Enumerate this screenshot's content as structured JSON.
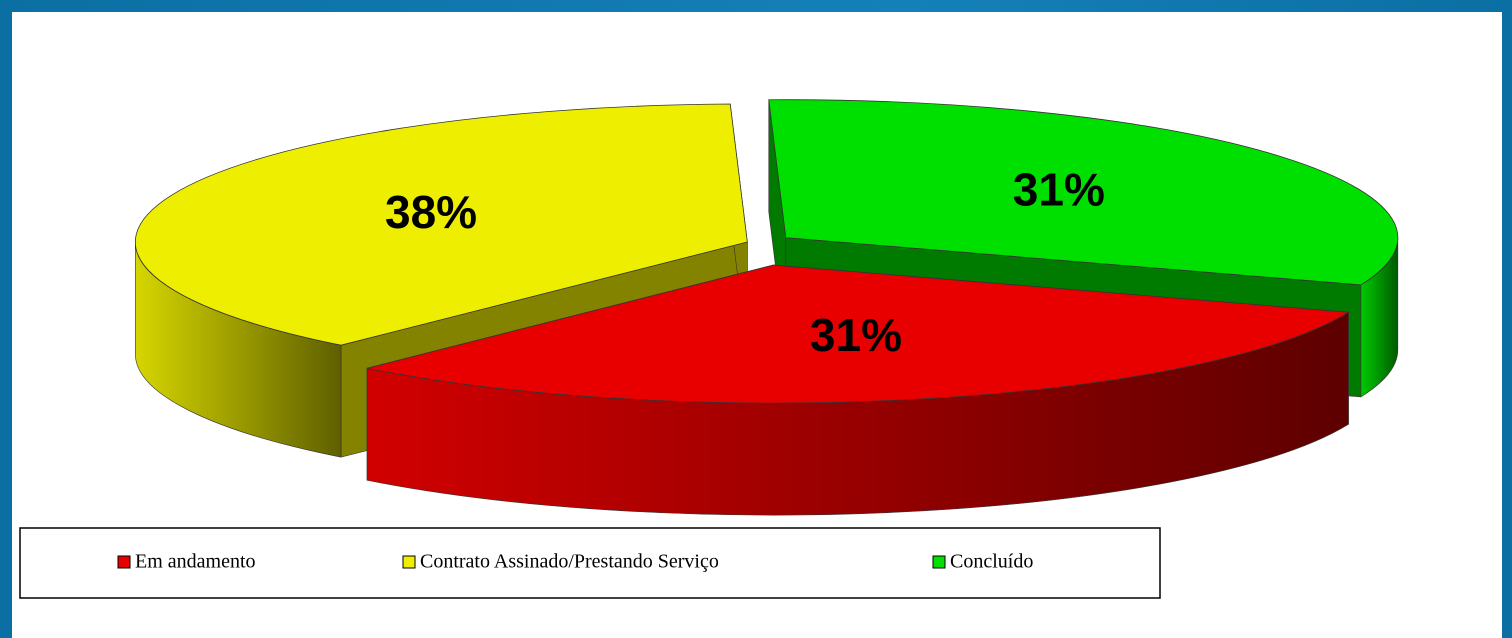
{
  "chart_data": {
    "type": "pie",
    "categories": [
      "Em andamento",
      "Contrato Assinado/Prestando Serviço",
      "Concluído"
    ],
    "values": [
      31,
      38,
      31
    ],
    "value_labels": [
      "31%",
      "38%",
      "31%"
    ],
    "colors": [
      "#e80000",
      "#eeee00",
      "#00e000"
    ],
    "legend": "bottom"
  }
}
